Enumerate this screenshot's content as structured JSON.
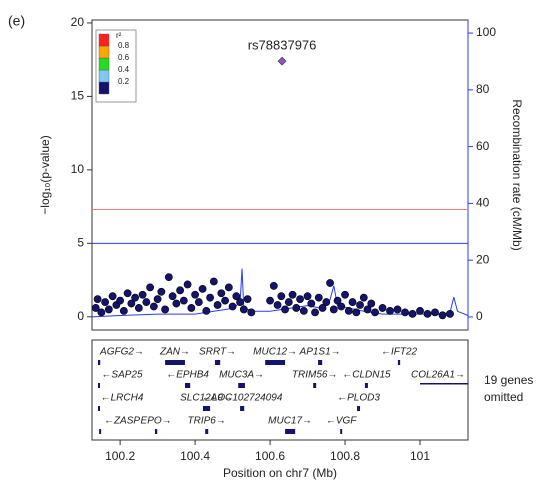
{
  "panel_label": "(e)",
  "chart_data": {
    "type": "scatter",
    "y_label": "−log₁₀(p-value)",
    "y2_label": "Recombination rate (cM/Mb)",
    "x_label": "Position on chr7 (Mb)",
    "xlim": [
      100.125,
      101.128
    ],
    "xticks": [
      100.2,
      100.4,
      100.6,
      100.8,
      101
    ],
    "ylim": [
      -0.9,
      20.2
    ],
    "yticks": [
      0,
      5,
      10,
      15,
      20
    ],
    "y2lim": [
      -4.6,
      104.6
    ],
    "y2ticks": [
      0,
      20,
      40,
      60,
      80,
      100
    ],
    "y2_color": "#2b3bf2",
    "hlines": [
      {
        "value": 7.3,
        "color": "#f08080"
      },
      {
        "value": 5,
        "color": "#2b3bf2"
      }
    ],
    "legend": {
      "title": "r²",
      "ticks": [
        0.2,
        0.4,
        0.6,
        0.8
      ],
      "colors": [
        "#14146e",
        "#7fc8f0",
        "#22dd22",
        "#ffa500",
        "#ff2020"
      ]
    },
    "lead_snp": {
      "label": "rs78837976",
      "x": 100.632,
      "value": 17.4,
      "color": "#9b4fc9"
    },
    "points": {
      "color": "#14146e",
      "x": [
        100.135,
        100.14,
        100.15,
        100.16,
        100.17,
        100.18,
        100.19,
        100.2,
        100.21,
        100.22,
        100.23,
        100.24,
        100.25,
        100.26,
        100.27,
        100.28,
        100.29,
        100.3,
        100.31,
        100.32,
        100.33,
        100.34,
        100.35,
        100.36,
        100.37,
        100.38,
        100.39,
        100.4,
        100.41,
        100.42,
        100.43,
        100.44,
        100.45,
        100.46,
        100.47,
        100.48,
        100.49,
        100.5,
        100.51,
        100.52,
        100.53,
        100.54,
        100.55,
        100.6,
        100.61,
        100.62,
        100.63,
        100.64,
        100.65,
        100.66,
        100.67,
        100.68,
        100.69,
        100.7,
        100.71,
        100.72,
        100.73,
        100.74,
        100.75,
        100.76,
        100.77,
        100.78,
        100.79,
        100.8,
        100.81,
        100.82,
        100.83,
        100.84,
        100.85,
        100.86,
        100.87,
        100.88,
        100.9,
        100.92,
        100.94,
        100.96,
        100.98,
        101.0,
        101.02,
        101.04,
        101.06,
        101.08
      ],
      "values": [
        0.6,
        1.2,
        0.3,
        1.0,
        0.5,
        1.4,
        0.8,
        1.1,
        0.4,
        1.6,
        0.9,
        1.3,
        0.6,
        1.5,
        1.0,
        2.0,
        0.7,
        1.2,
        1.7,
        0.5,
        2.7,
        1.4,
        0.9,
        1.8,
        1.1,
        2.2,
        0.6,
        1.5,
        1.0,
        1.9,
        0.4,
        1.3,
        2.4,
        0.8,
        1.6,
        1.1,
        2.0,
        0.7,
        1.4,
        1.0,
        0.5,
        1.2,
        0.3,
        1.1,
        2.1,
        0.8,
        1.4,
        0.5,
        1.0,
        1.5,
        0.6,
        1.2,
        0.4,
        1.4,
        0.9,
        0.3,
        1.3,
        0.6,
        1.0,
        2.3,
        0.5,
        1.1,
        0.7,
        1.5,
        0.4,
        1.0,
        0.3,
        0.8,
        1.3,
        0.5,
        0.9,
        0.3,
        0.6,
        0.4,
        0.5,
        0.3,
        0.2,
        0.4,
        0.2,
        0.3,
        0.1,
        0.2
      ]
    },
    "recombination": {
      "color": "#2b3bf2",
      "axis": "y2",
      "x": [
        100.125,
        100.2,
        100.3,
        100.4,
        100.45,
        100.5,
        100.52,
        100.525,
        100.53,
        100.56,
        100.6,
        100.65,
        100.7,
        100.74,
        100.76,
        100.77,
        100.78,
        100.85,
        100.9,
        101.0,
        101.05,
        101.08,
        101.09,
        101.1,
        101.128
      ],
      "values": [
        0,
        0.5,
        1,
        1,
        2,
        3,
        5,
        17,
        3,
        2,
        2,
        3,
        4,
        3,
        6,
        11,
        4,
        2,
        1,
        1,
        1,
        1.5,
        7,
        2,
        0.5
      ]
    },
    "genes": [
      {
        "label": "AGFG2→",
        "start": 100.141,
        "end": 100.147,
        "row": 0
      },
      {
        "label": "ZAN→",
        "start": 100.32,
        "end": 100.373,
        "row": 0
      },
      {
        "label": "SRRT→",
        "start": 100.453,
        "end": 100.467,
        "row": 0
      },
      {
        "label": "MUC12→",
        "start": 100.587,
        "end": 100.64,
        "row": 0
      },
      {
        "label": "AP1S1→",
        "start": 100.728,
        "end": 100.739,
        "row": 0
      },
      {
        "label": "←IFT22",
        "start": 100.941,
        "end": 100.947,
        "row": 0
      },
      {
        "label": "←SAP25",
        "start": 100.141,
        "end": 100.145,
        "row": 1
      },
      {
        "label": "←EPHB4",
        "start": 100.373,
        "end": 100.387,
        "row": 1
      },
      {
        "label": "MUC3A→",
        "start": 100.515,
        "end": 100.533,
        "row": 1
      },
      {
        "label": "TRIM56→",
        "start": 100.715,
        "end": 100.723,
        "row": 1
      },
      {
        "label": "←CLDN15",
        "start": 100.853,
        "end": 100.861,
        "row": 1
      },
      {
        "label": "COL26A1→",
        "start": 101.0,
        "end": 101.128,
        "row": 1
      },
      {
        "label": "←LRCH4",
        "start": 100.141,
        "end": 100.145,
        "row": 2
      },
      {
        "label": "SLC12A9→",
        "start": 100.421,
        "end": 100.44,
        "row": 2
      },
      {
        "label": "←LOC102724094",
        "start": 100.52,
        "end": 100.531,
        "row": 2
      },
      {
        "label": "←PLOD3",
        "start": 100.832,
        "end": 100.84,
        "row": 2
      },
      {
        "label": "←ZASP",
        "start": 100.144,
        "end": 100.149,
        "row": 3
      },
      {
        "label": "EPO→",
        "start": 100.293,
        "end": 100.299,
        "row": 3
      },
      {
        "label": "TRIP6→",
        "start": 100.427,
        "end": 100.435,
        "row": 3
      },
      {
        "label": "MUC17→",
        "start": 100.64,
        "end": 100.667,
        "row": 3
      },
      {
        "label": "←VGF",
        "start": 100.787,
        "end": 100.792,
        "row": 3
      }
    ],
    "omitted_note": [
      "19 genes",
      "omitted"
    ]
  }
}
